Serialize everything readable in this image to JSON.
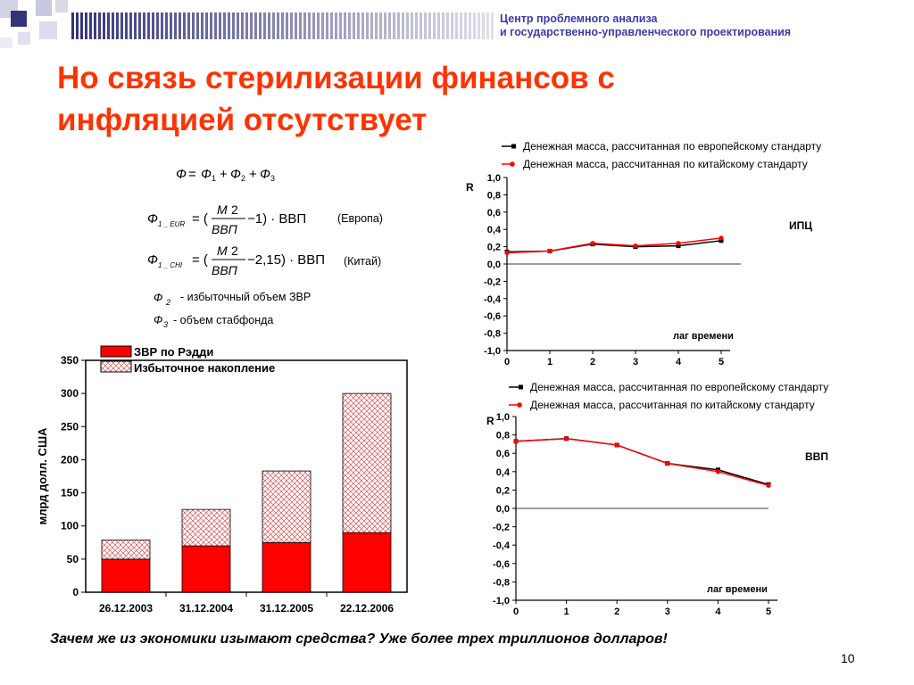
{
  "org": {
    "line1": "Центр проблемного анализа",
    "line2": "и государственно-управленческого проектирования"
  },
  "title": {
    "line1": "Но связь стерилизации финансов с",
    "line2": "инфляцией отсутствует"
  },
  "formulas": {
    "europe_note": "(Европа)",
    "china_note": "(Китай)",
    "f2_note": "- избыточный объем ЗВР",
    "f3_note": "- объем стабфонда"
  },
  "colors": {
    "accent_red": "#ff3300",
    "org_blue": "#3a3ab0",
    "bar_red": "#ff0000",
    "series_black": "#000000",
    "series_red": "#ff0000",
    "deco_navy": "#33337a"
  },
  "chart_data": [
    {
      "type": "bar",
      "ylabel": "млрд долл. США",
      "ylim": [
        0,
        350
      ],
      "yticks": [
        0,
        50,
        100,
        150,
        200,
        250,
        300,
        350
      ],
      "categories": [
        "26.12.2003",
        "31.12.2004",
        "31.12.2005",
        "22.12.2006"
      ],
      "stacked": true,
      "legend_position": "top",
      "series": [
        {
          "name": "ЗВР по Рэдди",
          "values": [
            50,
            70,
            75,
            90
          ],
          "color": "#ff0000",
          "pattern": "solid"
        },
        {
          "name": "Избыточное накопление",
          "values": [
            29,
            55,
            108,
            210
          ],
          "color": "#ff0000",
          "pattern": "crosshatch"
        }
      ]
    },
    {
      "type": "line",
      "ylabel": "R",
      "xlabel": "лаг времени",
      "annotation": "ИПЦ",
      "ylim": [
        -1.0,
        1.0
      ],
      "yticks": [
        "-1,0",
        "-0,8",
        "-0,6",
        "-0,4",
        "-0,2",
        "0,0",
        "0,2",
        "0,4",
        "0,6",
        "0,8",
        "1,0"
      ],
      "x": [
        0,
        1,
        2,
        3,
        4,
        5
      ],
      "legend_position": "top",
      "series": [
        {
          "name": "Денежная масса, рассчитанная по европейскому стандарту",
          "values": [
            0.14,
            0.15,
            0.23,
            0.2,
            0.21,
            0.27
          ],
          "color": "#000000",
          "marker": "square"
        },
        {
          "name": "Денежная масса, рассчитанная по китайскому стандарту",
          "values": [
            0.13,
            0.15,
            0.24,
            0.21,
            0.24,
            0.3
          ],
          "color": "#ff0000",
          "marker": "circle"
        }
      ]
    },
    {
      "type": "line",
      "ylabel": "R",
      "xlabel": "лаг времени",
      "annotation": "ВВП",
      "ylim": [
        -1.0,
        1.0
      ],
      "yticks": [
        "-1,0",
        "-0,8",
        "-0,6",
        "-0,4",
        "-0,2",
        "0,0",
        "0,2",
        "0,4",
        "0,6",
        "0,8",
        "1,0"
      ],
      "x": [
        0,
        1,
        2,
        3,
        4,
        5
      ],
      "legend_position": "top",
      "series": [
        {
          "name": "Денежная масса, рассчитанная по европейскому стандарту",
          "values": [
            0.73,
            0.76,
            0.69,
            0.49,
            0.42,
            0.26
          ],
          "color": "#000000",
          "marker": "square"
        },
        {
          "name": "Денежная масса, рассчитанная по китайскому стандарту",
          "values": [
            0.73,
            0.76,
            0.69,
            0.49,
            0.4,
            0.25
          ],
          "color": "#ff0000",
          "marker": "circle"
        }
      ]
    }
  ],
  "footer": {
    "question": "Зачем же из экономики изымают средства? Уже более трех триллионов долларов!",
    "page": "10"
  }
}
